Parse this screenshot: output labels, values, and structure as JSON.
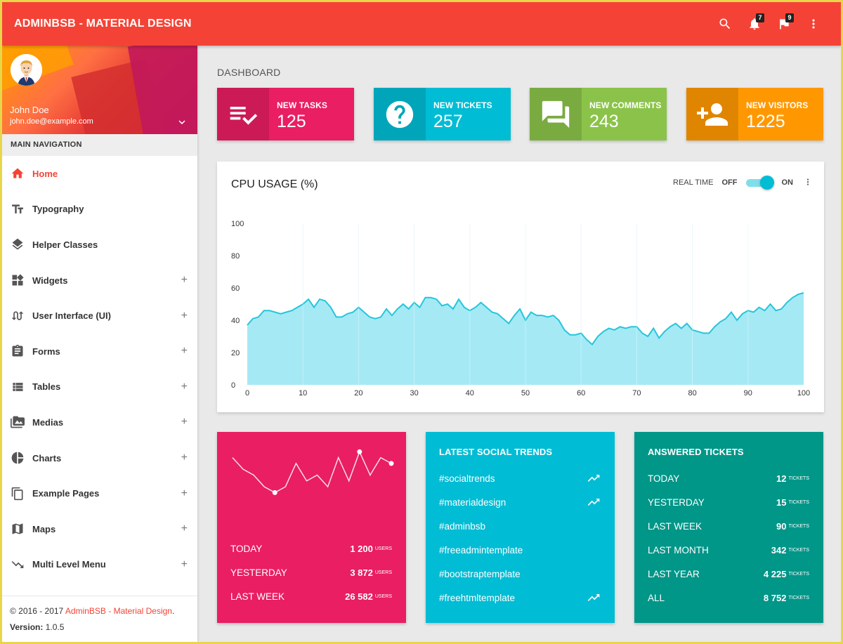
{
  "app": {
    "brand": "ADMINBSB - MATERIAL DESIGN",
    "brand_color": "#f44336",
    "notifications_count": "7",
    "tasks_count": "9"
  },
  "user": {
    "name": "John Doe",
    "email": "john.doe@example.com"
  },
  "sidebar": {
    "header": "MAIN NAVIGATION",
    "items": [
      {
        "label": "Home",
        "icon": "home-icon",
        "expandable": false,
        "active": true
      },
      {
        "label": "Typography",
        "icon": "text-fields-icon",
        "expandable": false
      },
      {
        "label": "Helper Classes",
        "icon": "layers-icon",
        "expandable": false
      },
      {
        "label": "Widgets",
        "icon": "widgets-icon",
        "expandable": true
      },
      {
        "label": "User Interface (UI)",
        "icon": "swap-calls-icon",
        "expandable": true
      },
      {
        "label": "Forms",
        "icon": "assignment-icon",
        "expandable": true
      },
      {
        "label": "Tables",
        "icon": "view-list-icon",
        "expandable": true
      },
      {
        "label": "Medias",
        "icon": "perm-media-icon",
        "expandable": true
      },
      {
        "label": "Charts",
        "icon": "pie-chart-icon",
        "expandable": true
      },
      {
        "label": "Example Pages",
        "icon": "content-copy-icon",
        "expandable": true
      },
      {
        "label": "Maps",
        "icon": "map-icon",
        "expandable": true
      },
      {
        "label": "Multi Level Menu",
        "icon": "trending-down-icon",
        "expandable": true
      }
    ],
    "plus_symbol": "+",
    "copyright_prefix": "© 2016 - 2017 ",
    "copyright_brand": "AdminBSB - Material Design",
    "copyright_suffix": ".",
    "version_label": "Version: ",
    "version_value": "1.0.5"
  },
  "main": {
    "page_title": "DASHBOARD",
    "info_boxes": [
      {
        "label": "NEW TASKS",
        "value": "125",
        "color": "#e91e63",
        "icon": "playlist-check-icon"
      },
      {
        "label": "NEW TICKETS",
        "value": "257",
        "color": "#00bcd4",
        "icon": "help-icon"
      },
      {
        "label": "NEW COMMENTS",
        "value": "243",
        "color": "#8bc34a",
        "icon": "forum-icon"
      },
      {
        "label": "NEW VISITORS",
        "value": "1225",
        "color": "#ff9800",
        "icon": "person-add-icon"
      }
    ],
    "cpu": {
      "title": "CPU USAGE (%)",
      "realtime_label": "REAL TIME",
      "off_label": "OFF",
      "on_label": "ON",
      "realtime_on": true
    },
    "online_users": {
      "color": "#e91e63",
      "sparkline": [
        8,
        6,
        5,
        3,
        2,
        3,
        7,
        4,
        5,
        3,
        8,
        4,
        9,
        5,
        8,
        7
      ],
      "rows": [
        {
          "label": "TODAY",
          "value": "1 200",
          "unit": "USERS"
        },
        {
          "label": "YESTERDAY",
          "value": "3 872",
          "unit": "USERS"
        },
        {
          "label": "LAST WEEK",
          "value": "26 582",
          "unit": "USERS"
        }
      ]
    },
    "social_trends": {
      "title": "LATEST SOCIAL TRENDS",
      "color": "#00bcd4",
      "rows": [
        {
          "label": "#socialtrends",
          "trending": true
        },
        {
          "label": "#materialdesign",
          "trending": true
        },
        {
          "label": "#adminbsb",
          "trending": false
        },
        {
          "label": "#freeadmintemplate",
          "trending": false
        },
        {
          "label": "#bootstraptemplate",
          "trending": false
        },
        {
          "label": "#freehtmltemplate",
          "trending": true
        }
      ]
    },
    "answered_tickets": {
      "title": "ANSWERED TICKETS",
      "color": "#009688",
      "rows": [
        {
          "label": "TODAY",
          "value": "12",
          "unit": "TICKETS"
        },
        {
          "label": "YESTERDAY",
          "value": "15",
          "unit": "TICKETS"
        },
        {
          "label": "LAST WEEK",
          "value": "90",
          "unit": "TICKETS"
        },
        {
          "label": "LAST MONTH",
          "value": "342",
          "unit": "TICKETS"
        },
        {
          "label": "LAST YEAR",
          "value": "4 225",
          "unit": "TICKETS"
        },
        {
          "label": "ALL",
          "value": "8 752",
          "unit": "TICKETS"
        }
      ]
    }
  },
  "chart_data": {
    "type": "area",
    "title": "CPU USAGE (%)",
    "xlim": [
      0,
      100
    ],
    "ylim": [
      0,
      100
    ],
    "xticks": [
      0,
      10,
      20,
      30,
      40,
      50,
      60,
      70,
      80,
      90,
      100
    ],
    "yticks": [
      0,
      20,
      40,
      60,
      80,
      100
    ],
    "fill_color": "#a5e9f5",
    "line_color": "#26c6da",
    "series": [
      {
        "x": [
          0,
          1,
          2,
          3,
          4,
          5,
          6,
          7,
          8,
          9,
          10,
          11,
          12,
          13,
          14,
          15,
          16,
          17,
          18,
          19,
          20,
          21,
          22,
          23,
          24,
          25,
          26,
          27,
          28,
          29,
          30,
          31,
          32,
          33,
          34,
          35,
          36,
          37,
          38,
          39,
          40,
          41,
          42,
          43,
          44,
          45,
          46,
          47,
          48,
          49,
          50,
          51,
          52,
          53,
          54,
          55,
          56,
          57,
          58,
          59,
          60,
          61,
          62,
          63,
          64,
          65,
          66,
          67,
          68,
          69,
          70,
          71,
          72,
          73,
          74,
          75,
          76,
          77,
          78,
          79,
          80,
          81,
          82,
          83,
          84,
          85,
          86,
          87,
          88,
          89,
          90,
          91,
          92,
          93,
          94,
          95,
          96,
          97,
          98,
          99,
          100
        ],
        "y": [
          37,
          41,
          42,
          46,
          46,
          45,
          44,
          45,
          46,
          48,
          50,
          53,
          48,
          53,
          52,
          48,
          42,
          42,
          44,
          45,
          48,
          45,
          42,
          41,
          42,
          47,
          43,
          47,
          50,
          47,
          51,
          48,
          54,
          54,
          53,
          49,
          50,
          47,
          53,
          48,
          46,
          48,
          51,
          48,
          45,
          44,
          41,
          38,
          43,
          47,
          40,
          45,
          43,
          43,
          42,
          43,
          40,
          34,
          31,
          31,
          32,
          28,
          25,
          30,
          33,
          35,
          34,
          36,
          35,
          36,
          36,
          32,
          30,
          35,
          29,
          33,
          36,
          38,
          35,
          38,
          34,
          33,
          32,
          32,
          36,
          39,
          41,
          45,
          40,
          44,
          46,
          45,
          48,
          46,
          50,
          46,
          47,
          51,
          54,
          56,
          57
        ]
      }
    ]
  }
}
